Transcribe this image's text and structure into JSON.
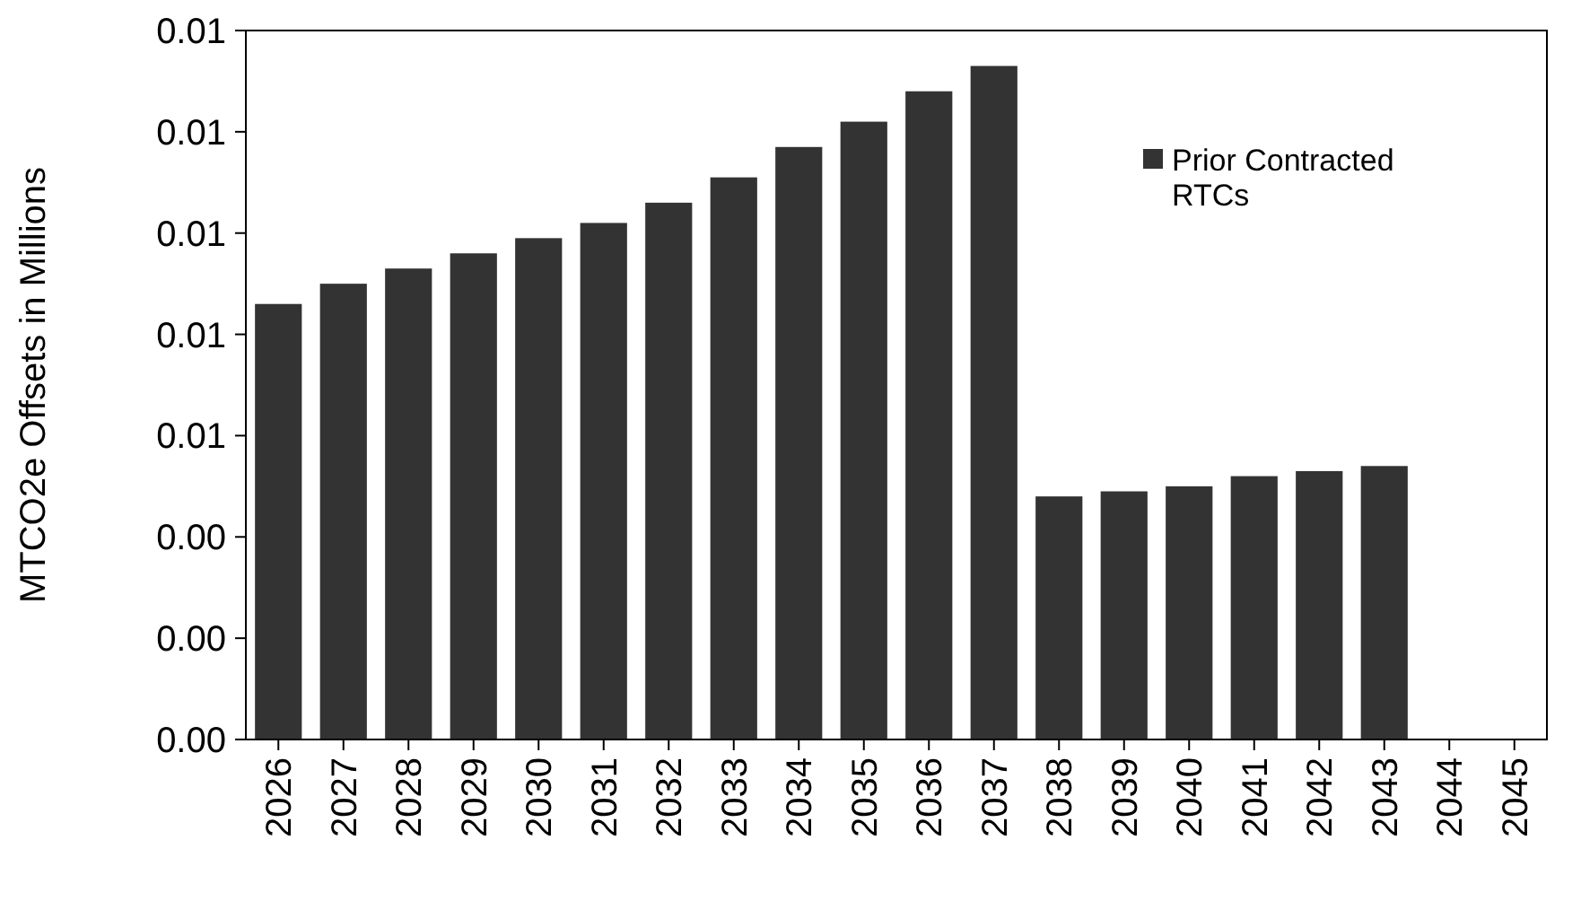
{
  "chart_data": {
    "type": "bar",
    "ylabel": "MTCO2e Offsets in Millions",
    "categories": [
      "2026",
      "2027",
      "2028",
      "2029",
      "2030",
      "2031",
      "2032",
      "2033",
      "2034",
      "2035",
      "2036",
      "2037",
      "2038",
      "2039",
      "2040",
      "2041",
      "2042",
      "2043",
      "2044",
      "2045"
    ],
    "series": [
      {
        "name": "Prior Contracted RTCs",
        "color": "#333333",
        "values": [
          0.0086,
          0.009,
          0.0093,
          0.0096,
          0.0099,
          0.0102,
          0.0106,
          0.0111,
          0.0117,
          0.0122,
          0.0128,
          0.0133,
          0.0048,
          0.0049,
          0.005,
          0.0052,
          0.0053,
          0.0054,
          0,
          0
        ]
      }
    ],
    "ylim": [
      0,
      0.014
    ],
    "yticks": [
      {
        "value": 0,
        "label": "0.00"
      },
      {
        "value": 0.002,
        "label": "0.00"
      },
      {
        "value": 0.004,
        "label": "0.00"
      },
      {
        "value": 0.006,
        "label": "0.01"
      },
      {
        "value": 0.008,
        "label": "0.01"
      },
      {
        "value": 0.01,
        "label": "0.01"
      },
      {
        "value": 0.012,
        "label": "0.01"
      },
      {
        "value": 0.014,
        "label": "0.01"
      }
    ],
    "grid": false,
    "legend": "top right"
  }
}
